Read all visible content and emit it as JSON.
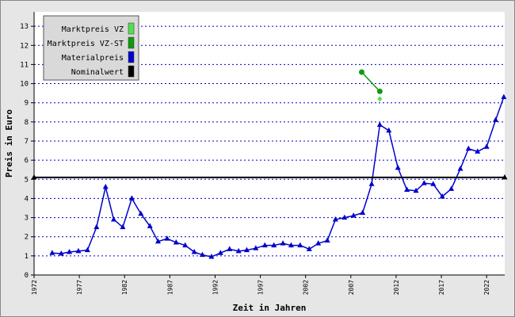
{
  "chart_data": {
    "type": "line",
    "xlabel": "Zeit in Jahren",
    "ylabel": "Preis in Euro",
    "xlim": [
      1972,
      2024
    ],
    "xticks": [
      1972,
      1977,
      1982,
      1987,
      1992,
      1997,
      2002,
      2007,
      2012,
      2017,
      2022
    ],
    "ylim": [
      0,
      13.75
    ],
    "yticks": [
      0,
      1,
      2,
      3,
      4,
      5,
      6,
      7,
      8,
      9,
      10,
      11,
      12,
      13
    ],
    "grid": true,
    "legend": "upper left",
    "series": [
      {
        "name": "Marktpreis VZ",
        "color": "#55dd55",
        "marker": "diamond",
        "x": [
          2010.2
        ],
        "values": [
          9.2
        ]
      },
      {
        "name": "Marktpreis VZ-ST",
        "color": "#119911",
        "marker": "circle",
        "x": [
          2008.2,
          2010.2
        ],
        "values": [
          10.6,
          9.6
        ]
      },
      {
        "name": "Materialpreis",
        "color": "#0000cc",
        "marker": "triangle",
        "x": [
          1974.0,
          1975.0,
          1975.9,
          1976.9,
          1977.9,
          1978.9,
          1979.9,
          1980.8,
          1981.8,
          1982.8,
          1983.8,
          1984.8,
          1985.7,
          1986.7,
          1987.7,
          1988.7,
          1989.7,
          1990.6,
          1991.6,
          1992.6,
          1993.6,
          1994.6,
          1995.5,
          1996.5,
          1997.5,
          1998.5,
          1999.5,
          2000.4,
          2001.4,
          2002.4,
          2003.4,
          2004.4,
          2005.3,
          2006.3,
          2007.3,
          2008.3,
          2009.3,
          2010.2,
          2011.2,
          2012.2,
          2013.2,
          2014.2,
          2015.1,
          2016.1,
          2017.1,
          2018.1,
          2019.1,
          2020.0,
          2021.0,
          2022.0,
          2023.0,
          2023.9
        ],
        "values": [
          1.15,
          1.12,
          1.2,
          1.25,
          1.3,
          2.5,
          4.6,
          2.9,
          2.5,
          4.0,
          3.2,
          2.55,
          1.75,
          1.9,
          1.7,
          1.55,
          1.2,
          1.05,
          0.95,
          1.15,
          1.35,
          1.25,
          1.3,
          1.4,
          1.55,
          1.55,
          1.65,
          1.55,
          1.55,
          1.35,
          1.65,
          1.8,
          2.9,
          3.0,
          3.1,
          3.25,
          4.75,
          7.85,
          7.55,
          5.6,
          4.45,
          4.4,
          4.8,
          4.75,
          4.1,
          4.5,
          5.55,
          6.6,
          6.45,
          6.7,
          8.1,
          9.3
        ]
      },
      {
        "name": "Nominalwert",
        "color": "#000000",
        "marker": "triangle",
        "x": [
          1972,
          2024
        ],
        "values": [
          5.1,
          5.1
        ]
      }
    ]
  }
}
